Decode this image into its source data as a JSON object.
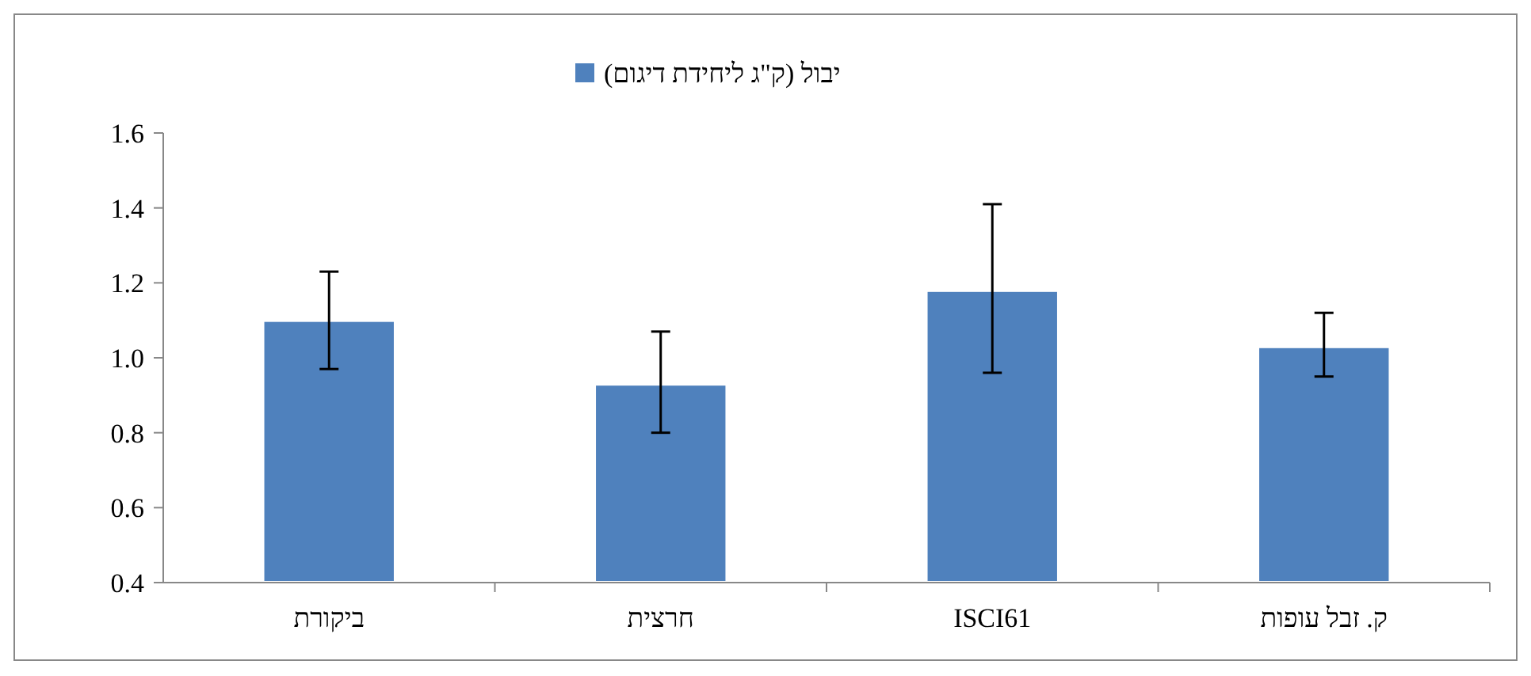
{
  "chart_data": {
    "type": "bar",
    "categories": [
      "ביקורת",
      "חרצית",
      "ISCI61",
      "ק. זבל עופות"
    ],
    "series": [
      {
        "name": "יבול (ק\"ג ליחידת דיגום)",
        "color": "#4f81bd",
        "values": [
          1.1,
          0.93,
          1.18,
          1.03
        ],
        "errors": [
          [
            0.97,
            1.23
          ],
          [
            0.8,
            1.07
          ],
          [
            0.96,
            1.41
          ],
          [
            0.95,
            1.12
          ]
        ]
      }
    ],
    "ylim": [
      0.4,
      1.6
    ],
    "yticks": [
      {
        "value": 0.4,
        "label": "0.4"
      },
      {
        "value": 0.6,
        "label": "0.6"
      },
      {
        "value": 0.8,
        "label": "0.8"
      },
      {
        "value": 1.0,
        "label": "1.0"
      },
      {
        "value": 1.2,
        "label": "1.2"
      },
      {
        "value": 1.4,
        "label": "1.4"
      },
      {
        "value": 1.6,
        "label": "1.6"
      }
    ],
    "grid": false,
    "legend": "top"
  }
}
